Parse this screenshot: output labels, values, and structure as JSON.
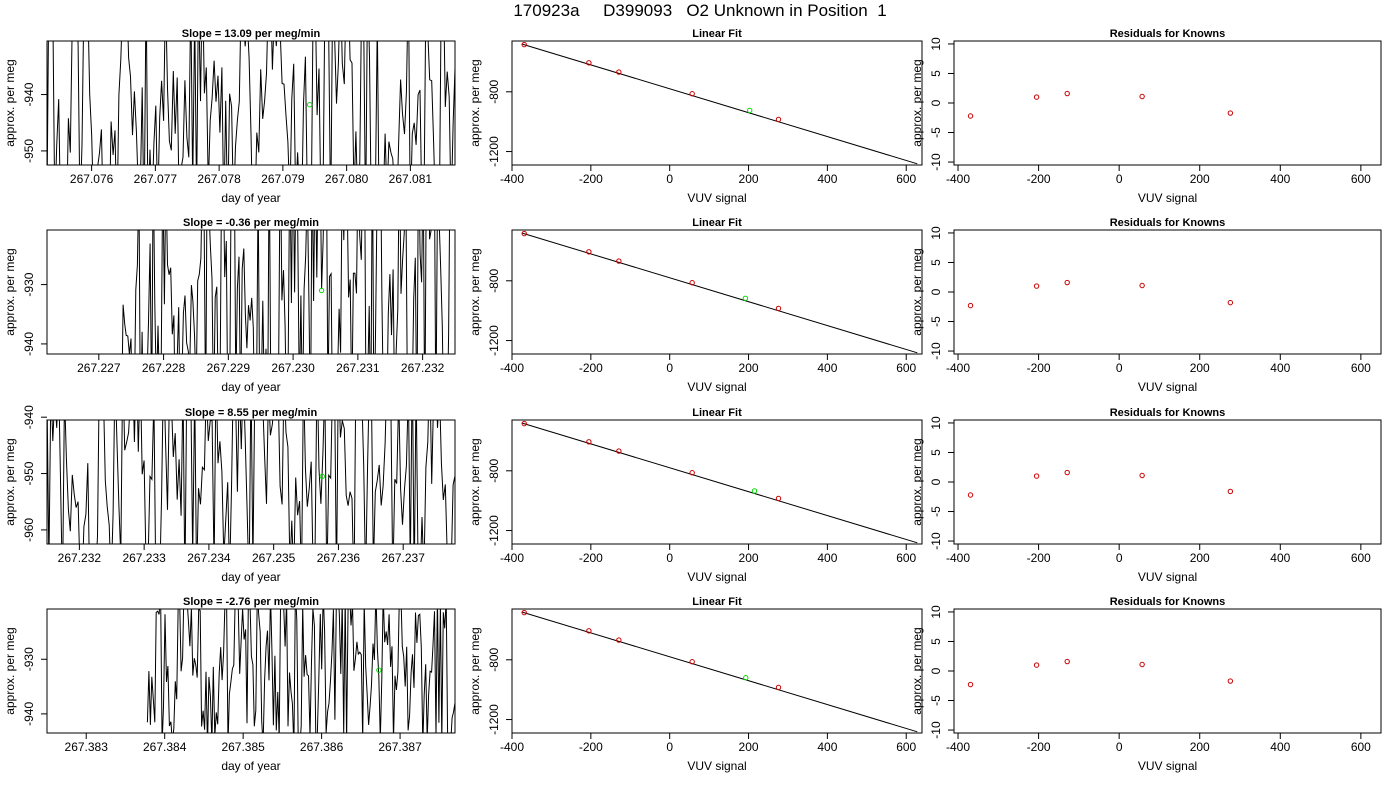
{
  "page_title": "170923a     D399093   O2 Unknown in Position  1",
  "colors": {
    "line": "#000000",
    "point_known": "#cc0000",
    "point_unknown": "#00dd00",
    "frame": "#000000"
  },
  "chart_data": [
    {
      "type": "line",
      "title": "Slope =  13.09  per meg/min",
      "xlabel": "day of year",
      "ylabel": "approx. per meg",
      "xlim": [
        267.0753,
        267.0817
      ],
      "ylim": [
        -952.5,
        -930.5
      ],
      "xticks": [
        267.076,
        267.077,
        267.078,
        267.079,
        267.08,
        267.081
      ],
      "xtick_labels": [
        "267.076",
        "267.077",
        "267.078",
        "267.079",
        "267.080",
        "267.081"
      ],
      "yticks": [
        -950,
        -940
      ],
      "ytick_labels": [
        "-950",
        "-940"
      ],
      "trace_seed": 11,
      "trace_center": -941.5,
      "trace_amplitude": 14,
      "unknown_point": [
        267.07942,
        -941.8
      ]
    },
    {
      "type": "scatter",
      "title": "Linear Fit",
      "xlabel": "VUV signal",
      "ylabel": "approx. per meg",
      "xlim": [
        -400,
        640
      ],
      "ylim": [
        -1290,
        -460
      ],
      "xticks": [
        -400,
        -200,
        0,
        200,
        400,
        600
      ],
      "xtick_labels": [
        "-400",
        "-200",
        "0",
        "200",
        "400",
        "600"
      ],
      "yticks": [
        -1200,
        -800
      ],
      "ytick_labels": [
        "-1200",
        "-800"
      ],
      "fit_line": {
        "x": [
          -375,
          628
        ],
        "y": [
          -480,
          -1282
        ]
      },
      "known_points": {
        "x": [
          -369,
          -205,
          -129,
          57,
          276
        ],
        "y": [
          -484,
          -606,
          -668,
          -813,
          -985
        ]
      },
      "unknown_point": [
        203,
        -925
      ]
    },
    {
      "type": "scatter",
      "title": "Residuals for Knowns",
      "xlabel": "VUV signal",
      "ylabel": "approx. per meg",
      "xlim": [
        -410,
        650
      ],
      "ylim": [
        -10.5,
        10.5
      ],
      "xticks": [
        -400,
        -200,
        0,
        200,
        400,
        600
      ],
      "xtick_labels": [
        "-400",
        "-200",
        "0",
        "200",
        "400",
        "600"
      ],
      "yticks": [
        -10,
        -5,
        0,
        5,
        10
      ],
      "ytick_labels": [
        "-10",
        "-5",
        "0",
        "5",
        "10"
      ],
      "points": {
        "x": [
          -369,
          -205,
          -129,
          57,
          276
        ],
        "y": [
          -2.2,
          1.0,
          1.6,
          1.1,
          -1.7
        ]
      }
    },
    {
      "type": "line",
      "title": "Slope =  -0.36  per meg/min",
      "xlabel": "day of year",
      "ylabel": "approx. per meg",
      "xlim": [
        267.2262,
        267.2325
      ],
      "ylim": [
        -941.7,
        -920.8
      ],
      "xticks": [
        267.227,
        267.228,
        267.229,
        267.23,
        267.231,
        267.232
      ],
      "xtick_labels": [
        "267.227",
        "267.228",
        "267.229",
        "267.230",
        "267.231",
        "267.232"
      ],
      "yticks": [
        -940,
        -930
      ],
      "ytick_labels": [
        "-940",
        "-930"
      ],
      "trace_seed": 23,
      "trace_center": -931,
      "trace_amplitude": 16,
      "trace_start": 267.22735,
      "unknown_point": [
        267.23044,
        -931.0
      ]
    },
    {
      "type": "scatter",
      "title": "Linear Fit",
      "xlabel": "VUV signal",
      "ylabel": "approx. per meg",
      "xlim": [
        -400,
        640
      ],
      "ylim": [
        -1290,
        -460
      ],
      "xticks": [
        -400,
        -200,
        0,
        200,
        400,
        600
      ],
      "xtick_labels": [
        "-400",
        "-200",
        "0",
        "200",
        "400",
        "600"
      ],
      "yticks": [
        -1200,
        -800
      ],
      "ytick_labels": [
        "-1200",
        "-800"
      ],
      "fit_line": {
        "x": [
          -375,
          628
        ],
        "y": [
          -480,
          -1282
        ]
      },
      "known_points": {
        "x": [
          -369,
          -205,
          -129,
          57,
          276
        ],
        "y": [
          -484,
          -606,
          -668,
          -813,
          -985
        ]
      },
      "unknown_point": [
        192,
        -917
      ]
    },
    {
      "type": "scatter",
      "title": "Residuals for Knowns",
      "xlabel": "VUV signal",
      "ylabel": "approx. per meg",
      "xlim": [
        -410,
        650
      ],
      "ylim": [
        -10.5,
        10.5
      ],
      "xticks": [
        -400,
        -200,
        0,
        200,
        400,
        600
      ],
      "xtick_labels": [
        "-400",
        "-200",
        "0",
        "200",
        "400",
        "600"
      ],
      "yticks": [
        -10,
        -5,
        0,
        5,
        10
      ],
      "ytick_labels": [
        "-10",
        "-5",
        "0",
        "5",
        "10"
      ],
      "points": {
        "x": [
          -369,
          -205,
          -129,
          57,
          276
        ],
        "y": [
          -2.3,
          1.0,
          1.6,
          1.1,
          -1.8
        ]
      }
    },
    {
      "type": "line",
      "title": "Slope =  8.55  per meg/min",
      "xlabel": "day of year",
      "ylabel": "approx. per meg",
      "xlim": [
        267.2315,
        267.2378
      ],
      "ylim": [
        -962.5,
        -940.5
      ],
      "xticks": [
        267.232,
        267.233,
        267.234,
        267.235,
        267.236,
        267.237
      ],
      "xtick_labels": [
        "267.232",
        "267.233",
        "267.234",
        "267.235",
        "267.236",
        "267.237"
      ],
      "yticks": [
        -960,
        -950,
        -940
      ],
      "ytick_labels": [
        "-960",
        "-950",
        "-940"
      ],
      "trace_seed": 37,
      "trace_center": -950.5,
      "trace_amplitude": 13,
      "unknown_point": [
        267.23575,
        -950.5
      ]
    },
    {
      "type": "scatter",
      "title": "Linear Fit",
      "xlabel": "VUV signal",
      "ylabel": "approx. per meg",
      "xlim": [
        -400,
        640
      ],
      "ylim": [
        -1290,
        -460
      ],
      "xticks": [
        -400,
        -200,
        0,
        200,
        400,
        600
      ],
      "xtick_labels": [
        "-400",
        "-200",
        "0",
        "200",
        "400",
        "600"
      ],
      "yticks": [
        -1200,
        -800
      ],
      "ytick_labels": [
        "-1200",
        "-800"
      ],
      "fit_line": {
        "x": [
          -375,
          628
        ],
        "y": [
          -480,
          -1282
        ]
      },
      "known_points": {
        "x": [
          -369,
          -205,
          -129,
          57,
          276
        ],
        "y": [
          -484,
          -606,
          -668,
          -813,
          -985
        ]
      },
      "unknown_point": [
        215,
        -935
      ]
    },
    {
      "type": "scatter",
      "title": "Residuals for Knowns",
      "xlabel": "VUV signal",
      "ylabel": "approx. per meg",
      "xlim": [
        -410,
        650
      ],
      "ylim": [
        -10.5,
        10.5
      ],
      "xticks": [
        -400,
        -200,
        0,
        200,
        400,
        600
      ],
      "xtick_labels": [
        "-400",
        "-200",
        "0",
        "200",
        "400",
        "600"
      ],
      "yticks": [
        -10,
        -5,
        0,
        5,
        10
      ],
      "ytick_labels": [
        "-10",
        "-5",
        "0",
        "5",
        "10"
      ],
      "points": {
        "x": [
          -369,
          -205,
          -129,
          57,
          276
        ],
        "y": [
          -2.2,
          1.0,
          1.6,
          1.1,
          -1.6
        ]
      }
    },
    {
      "type": "line",
      "title": "Slope =  -2.76  per meg/min",
      "xlabel": "day of year",
      "ylabel": "approx. per meg",
      "xlim": [
        267.3825,
        267.3877
      ],
      "ylim": [
        -943.5,
        -920.8
      ],
      "xticks": [
        267.383,
        267.384,
        267.385,
        267.386,
        267.387
      ],
      "xtick_labels": [
        "267.383",
        "267.384",
        "267.385",
        "267.386",
        "267.387"
      ],
      "yticks": [
        -940,
        -930
      ],
      "ytick_labels": [
        "-940",
        "-930"
      ],
      "trace_seed": 53,
      "trace_center": -931.5,
      "trace_amplitude": 9,
      "trace_start": 267.38378,
      "unknown_point": [
        267.38673,
        -932.0
      ]
    },
    {
      "type": "scatter",
      "title": "Linear Fit",
      "xlabel": "VUV signal",
      "ylabel": "approx. per meg",
      "xlim": [
        -400,
        640
      ],
      "ylim": [
        -1290,
        -460
      ],
      "xticks": [
        -400,
        -200,
        0,
        200,
        400,
        600
      ],
      "xtick_labels": [
        "-400",
        "-200",
        "0",
        "200",
        "400",
        "600"
      ],
      "yticks": [
        -1200,
        -800
      ],
      "ytick_labels": [
        "-1200",
        "-800"
      ],
      "fit_line": {
        "x": [
          -375,
          628
        ],
        "y": [
          -480,
          -1282
        ]
      },
      "known_points": {
        "x": [
          -369,
          -205,
          -129,
          57,
          276
        ],
        "y": [
          -484,
          -606,
          -668,
          -813,
          -985
        ]
      },
      "unknown_point": [
        193,
        -920
      ]
    },
    {
      "type": "scatter",
      "title": "Residuals for Knowns",
      "xlabel": "VUV signal",
      "ylabel": "approx. per meg",
      "xlim": [
        -410,
        650
      ],
      "ylim": [
        -10.5,
        10.5
      ],
      "xticks": [
        -400,
        -200,
        0,
        200,
        400,
        600
      ],
      "xtick_labels": [
        "-400",
        "-200",
        "0",
        "200",
        "400",
        "600"
      ],
      "yticks": [
        -10,
        -5,
        0,
        5,
        10
      ],
      "ytick_labels": [
        "-10",
        "-5",
        "0",
        "5",
        "10"
      ],
      "points": {
        "x": [
          -369,
          -205,
          -129,
          57,
          276
        ],
        "y": [
          -2.3,
          1.0,
          1.6,
          1.1,
          -1.7
        ]
      }
    }
  ]
}
